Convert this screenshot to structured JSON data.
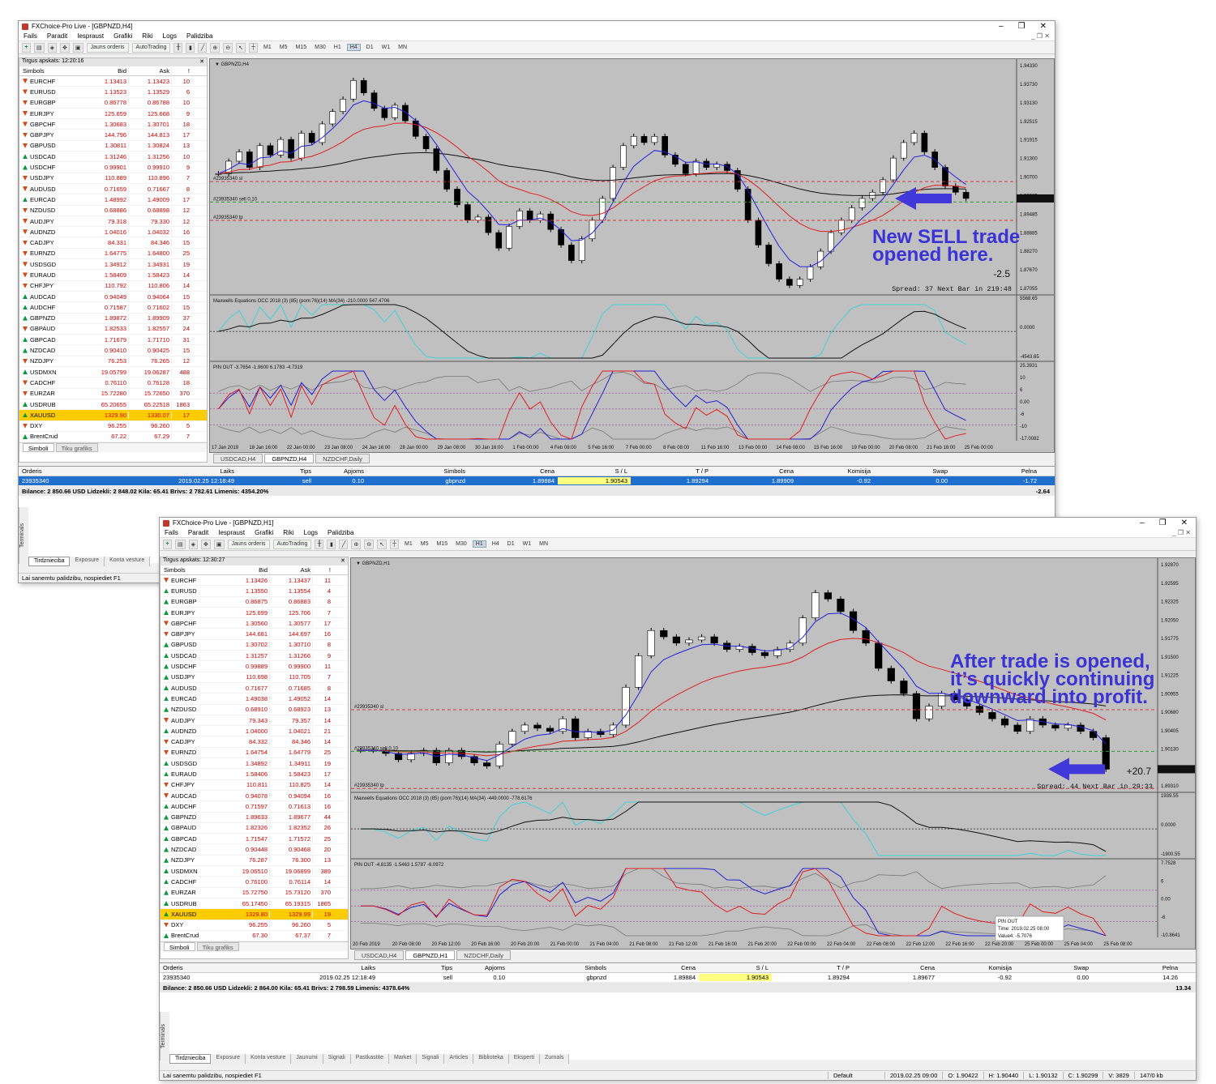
{
  "window1": {
    "title": "FXChoice-Pro Live - [GBPNZD,H4]",
    "menu": [
      "Fails",
      "Paradit",
      "Iespraust",
      "Grafiki",
      "Riki",
      "Logs",
      "Palidziba"
    ],
    "toolbar": {
      "new_order": "Jauns orderis",
      "autotrading": "AutoTrading"
    },
    "timeframes": [
      "M1",
      "M5",
      "M15",
      "M30",
      "H1",
      "H4",
      "D1",
      "W1",
      "MN"
    ],
    "active_tf": "H4",
    "market_title": "Tirgus apskats: 12:20:16",
    "market_tabs": [
      "Simboli",
      "Tiku grafiks"
    ],
    "chart_caption": "GBPNZD,H4",
    "indicator1": "Maxwells Equations OCC 2018 (3) (85) (pom:76)(14) MA(34) -210.0000 547.4706",
    "indicator2": "PIN OUT -3.7654 -1.9600 6.1783 -4.7319",
    "sl_label": "#23935340 sl",
    "sell_label": "#23935340 sell 0.10",
    "tp_label": "#23935340 tp",
    "price_ticks": [
      "1.94330",
      "1.93730",
      "1.93130",
      "1.92515",
      "1.91915",
      "1.91300",
      "1.90700",
      "1.90085",
      "1.89485",
      "1.88885",
      "1.88270",
      "1.87670",
      "1.87055"
    ],
    "current_price": "1.89872",
    "ind1_ticks": [
      "5568.65",
      "0.0000",
      "-4543.65"
    ],
    "ind2_ticks": [
      "25.3931",
      "10",
      "6",
      "0.00",
      "-6",
      "-10",
      "-17.0082"
    ],
    "time_ticks": [
      "17 Jan 2019",
      "18 Jan 16:00",
      "22 Jan 00:00",
      "23 Jan 08:00",
      "24 Jan 16:00",
      "28 Jan 00:00",
      "29 Jan 08:00",
      "30 Jan 16:00",
      "1 Feb 00:00",
      "4 Feb 08:00",
      "5 Feb 16:00",
      "7 Feb 00:00",
      "8 Feb 08:00",
      "11 Feb 16:00",
      "13 Feb 00:00",
      "14 Feb 08:00",
      "15 Feb 16:00",
      "19 Feb 00:00",
      "20 Feb 08:00",
      "21 Feb 16:00",
      "25 Feb 00:00"
    ],
    "spread_text": "Spread: 37  Next Bar in 219:48",
    "profit_text": "-2.5",
    "chart_tabs": [
      "USDCAD,H4",
      "GBPNZD,H4",
      "NZDCHF,Daily"
    ],
    "annotation": "New SELL trade opened here.",
    "annotation_line1": "New SELL trade",
    "annotation_line2": "opened here.",
    "terminal": {
      "headers": [
        "Orderis",
        "Laiks",
        "Tips",
        "Apjoms",
        "Simbols",
        "Cena",
        "S / L",
        "T / P",
        "Cena",
        "Komisija",
        "Swap",
        "Pelna"
      ],
      "row": [
        "23935340",
        "2019.02.25 12:18:49",
        "sell",
        "0.10",
        "gbpnzd",
        "1.89884",
        "1.90543",
        "1.89294",
        "1.89909",
        "-0.92",
        "0.00",
        "-1.72"
      ],
      "balance": "Bilance: 2 850.66 USD  Lidzekli: 2 848.02  Kila: 65.41  Brivs: 2 782.61  Limenis: 4354.20%",
      "balance_profit": "-2.64"
    },
    "bottom_tabs": [
      "Tirdznieciba",
      "Exposure",
      "Konta vesture"
    ],
    "terminal_vtab": "Terminals",
    "status": "Lai sanemtu palidzibu, nospiediet F1"
  },
  "window2": {
    "title": "FXChoice-Pro Live - [GBPNZD,H1]",
    "menu": [
      "Fails",
      "Paradit",
      "Iespraust",
      "Grafiki",
      "Riki",
      "Logs",
      "Palidziba"
    ],
    "toolbar": {
      "new_order": "Jauns orderis",
      "autotrading": "AutoTrading"
    },
    "timeframes": [
      "M1",
      "M5",
      "M15",
      "M30",
      "H1",
      "H4",
      "D1",
      "W1",
      "MN"
    ],
    "active_tf": "H1",
    "market_title": "Tirgus apskats: 12:30:27",
    "market_tabs": [
      "Simboli",
      "Tiku grafiks"
    ],
    "chart_caption": "GBPNZD,H1",
    "indicator1": "Maxwells Equations OCC 2018 (3) (85) (pom:76)(14) MA(34) -449.0000 -778.6176",
    "indicator2": "PIN OUT -4.8135 -1.5463 1.5787 -6.0972",
    "sl_label": "#23935340 sl",
    "sell_label": "#23935340 sell 0.10",
    "tp_label": "#23935340 tp",
    "price_ticks": [
      "1.92870",
      "1.92595",
      "1.92325",
      "1.92050",
      "1.91775",
      "1.91500",
      "1.91225",
      "1.90955",
      "1.90680",
      "1.90405",
      "1.90130",
      "1.89855",
      "1.89310"
    ],
    "current_price": "1.89633",
    "ind1_ticks": [
      "1939.55",
      "0.0000",
      "-1900.55"
    ],
    "ind2_ticks": [
      "7.7528",
      "6",
      "0.00",
      "-6",
      "-10.8641"
    ],
    "time_ticks": [
      "20 Feb 2019",
      "20 Feb 08:00",
      "20 Feb 12:00",
      "20 Feb 16:00",
      "20 Feb 20:00",
      "21 Feb 00:00",
      "21 Feb 04:00",
      "21 Feb 08:00",
      "21 Feb 12:00",
      "21 Feb 16:00",
      "21 Feb 20:00",
      "22 Feb 00:00",
      "22 Feb 04:00",
      "22 Feb 08:00",
      "22 Feb 12:00",
      "22 Feb 16:00",
      "22 Feb 20:00",
      "25 Feb 00:00",
      "25 Feb 04:00",
      "25 Feb 08:00"
    ],
    "spread_text": "Spread: 44  Next Bar in 29:33",
    "profit_text": "+20.7",
    "tooltip": [
      "PIN OUT",
      "Time: 2019.02.25 08:00",
      "Value4: -5.7076"
    ],
    "chart_tabs": [
      "USDCAD,H4",
      "GBPNZD,H1",
      "NZDCHF,Daily"
    ],
    "annotation_line1": "After trade is opened,",
    "annotation_line2": "it’s quickly continuing",
    "annotation_line3": "downward into profit.",
    "terminal": {
      "headers": [
        "Orderis",
        "Laiks",
        "Tips",
        "Apjoms",
        "Simbols",
        "Cena",
        "S / L",
        "T / P",
        "Cena",
        "Komisija",
        "Swap",
        "Pelna"
      ],
      "row": [
        "23935340",
        "2019.02.25 12:18:49",
        "sell",
        "0.10",
        "gbpnzd",
        "1.89884",
        "1.90543",
        "1.89294",
        "1.89677",
        "-0.92",
        "0.00",
        "14.26"
      ],
      "balance": "Bilance: 2 850.66 USD  Lidzekli: 2 864.00  Kila: 65.41  Brivs: 2 798.59  Limenis: 4378.64%",
      "balance_profit": "13.34"
    },
    "bottom_tabs": [
      "Tirdznieciba",
      "Exposure",
      "Konta vesture",
      "Jaunumi",
      "Signali",
      "Pastkastite",
      "Market",
      "Signali",
      "Articles",
      "Biblioteka",
      "Eksperti",
      "Zurnals"
    ],
    "terminal_vtab": "Terminals",
    "status": {
      "help": "Lai sanemtu palidzibu, nospiediet F1",
      "profile": "Default",
      "time": "2019.02.25 09:00",
      "open": "O: 1.90422",
      "high": "H: 1.90440",
      "low": "L: 1.90132",
      "close": "C: 1.90299",
      "volume": "V: 3829",
      "traffic": "147/0 kb"
    }
  },
  "market_headers": [
    "Simbols",
    "Bid",
    "Ask",
    "!"
  ],
  "market1": [
    [
      "EURCHF",
      "1.13413",
      "1.13423",
      "10",
      "dn"
    ],
    [
      "EURUSD",
      "1.13523",
      "1.13529",
      "6",
      "dn"
    ],
    [
      "EURGBP",
      "0.86778",
      "0.86788",
      "10",
      "dn"
    ],
    [
      "EURJPY",
      "125.659",
      "125.668",
      "9",
      "dn"
    ],
    [
      "GBPCHF",
      "1.30683",
      "1.30701",
      "18",
      "dn"
    ],
    [
      "GBPJPY",
      "144.796",
      "144.813",
      "17",
      "dn"
    ],
    [
      "GBPUSD",
      "1.30811",
      "1.30824",
      "13",
      "dn"
    ],
    [
      "USDCAD",
      "1.31246",
      "1.31256",
      "10",
      "up"
    ],
    [
      "USDCHF",
      "0.99901",
      "0.99910",
      "9",
      "up"
    ],
    [
      "USDJPY",
      "110.889",
      "110.896",
      "7",
      "dn"
    ],
    [
      "AUDUSD",
      "0.71659",
      "0.71667",
      "8",
      "dn"
    ],
    [
      "EURCAD",
      "1.48992",
      "1.49009",
      "17",
      "up"
    ],
    [
      "NZDUSD",
      "0.68886",
      "0.68898",
      "12",
      "dn"
    ],
    [
      "AUDJPY",
      "79.318",
      "79.330",
      "12",
      "dn"
    ],
    [
      "AUDNZD",
      "1.04016",
      "1.04032",
      "16",
      "dn"
    ],
    [
      "CADJPY",
      "84.331",
      "84.346",
      "15",
      "dn"
    ],
    [
      "EURNZD",
      "1.64775",
      "1.64800",
      "25",
      "dn"
    ],
    [
      "USDSGD",
      "1.34912",
      "1.34931",
      "19",
      "dn"
    ],
    [
      "EURAUD",
      "1.58409",
      "1.58423",
      "14",
      "dn"
    ],
    [
      "CHFJPY",
      "110.792",
      "110.806",
      "14",
      "dn"
    ],
    [
      "AUDCAD",
      "0.94049",
      "0.94064",
      "15",
      "up"
    ],
    [
      "AUDCHF",
      "0.71587",
      "0.71602",
      "15",
      "up"
    ],
    [
      "GBPNZD",
      "1.89872",
      "1.89909",
      "37",
      "up"
    ],
    [
      "GBPAUD",
      "1.82533",
      "1.82557",
      "24",
      "dn"
    ],
    [
      "GBPCAD",
      "1.71679",
      "1.71710",
      "31",
      "up"
    ],
    [
      "NZDCAD",
      "0.90410",
      "0.90425",
      "15",
      "up"
    ],
    [
      "NZDJPY",
      "76.253",
      "76.265",
      "12",
      "dn"
    ],
    [
      "USDMXN",
      "19.05799",
      "19.06287",
      "488",
      "up"
    ],
    [
      "CADCHF",
      "0.76110",
      "0.76128",
      "18",
      "dn"
    ],
    [
      "EURZAR",
      "15.72280",
      "15.72650",
      "370",
      "dn"
    ],
    [
      "USDRUB",
      "65.20655",
      "65.22518",
      "1863",
      "up"
    ],
    [
      "XAUUSD",
      "1329.90",
      "1330.07",
      "17",
      "up"
    ],
    [
      "DXY",
      "96.255",
      "96.260",
      "5",
      "dn"
    ],
    [
      "BrentCrud",
      "67.22",
      "67.29",
      "7",
      "up"
    ]
  ],
  "market2": [
    [
      "EURCHF",
      "1.13426",
      "1.13437",
      "11",
      "dn"
    ],
    [
      "EURUSD",
      "1.13550",
      "1.13554",
      "4",
      "up"
    ],
    [
      "EURGBP",
      "0.86875",
      "0.86883",
      "8",
      "up"
    ],
    [
      "EURJPY",
      "125.699",
      "125.706",
      "7",
      "up"
    ],
    [
      "GBPCHF",
      "1.30560",
      "1.30577",
      "17",
      "dn"
    ],
    [
      "GBPJPY",
      "144.681",
      "144.697",
      "16",
      "dn"
    ],
    [
      "GBPUSD",
      "1.30702",
      "1.30710",
      "8",
      "up"
    ],
    [
      "USDCAD",
      "1.31257",
      "1.31266",
      "9",
      "up"
    ],
    [
      "USDCHF",
      "0.99889",
      "0.99900",
      "11",
      "up"
    ],
    [
      "USDJPY",
      "110.698",
      "110.705",
      "7",
      "up"
    ],
    [
      "AUDUSD",
      "0.71677",
      "0.71685",
      "8",
      "up"
    ],
    [
      "EURCAD",
      "1.49038",
      "1.49052",
      "14",
      "up"
    ],
    [
      "NZDUSD",
      "0.68910",
      "0.68923",
      "13",
      "up"
    ],
    [
      "AUDJPY",
      "79.343",
      "79.357",
      "14",
      "dn"
    ],
    [
      "AUDNZD",
      "1.04000",
      "1.04021",
      "21",
      "up"
    ],
    [
      "CADJPY",
      "84.332",
      "84.346",
      "14",
      "dn"
    ],
    [
      "EURNZD",
      "1.64754",
      "1.64779",
      "25",
      "dn"
    ],
    [
      "USDSGD",
      "1.34892",
      "1.34911",
      "19",
      "up"
    ],
    [
      "EURAUD",
      "1.58406",
      "1.58423",
      "17",
      "up"
    ],
    [
      "CHFJPY",
      "110.811",
      "110.825",
      "14",
      "dn"
    ],
    [
      "AUDCAD",
      "0.94078",
      "0.94094",
      "16",
      "dn"
    ],
    [
      "AUDCHF",
      "0.71597",
      "0.71613",
      "16",
      "up"
    ],
    [
      "GBPNZD",
      "1.89633",
      "1.89677",
      "44",
      "up"
    ],
    [
      "GBPAUD",
      "1.82326",
      "1.82352",
      "26",
      "up"
    ],
    [
      "GBPCAD",
      "1.71547",
      "1.71572",
      "25",
      "up"
    ],
    [
      "NZDCAD",
      "0.90448",
      "0.90468",
      "20",
      "up"
    ],
    [
      "NZDJPY",
      "76.287",
      "76.300",
      "13",
      "up"
    ],
    [
      "USDMXN",
      "19.06510",
      "19.06899",
      "389",
      "up"
    ],
    [
      "CADCHF",
      "0.76100",
      "0.76114",
      "14",
      "up"
    ],
    [
      "EURZAR",
      "15.72750",
      "15.73120",
      "370",
      "up"
    ],
    [
      "USDRUB",
      "65.17450",
      "65.19315",
      "1865",
      "up"
    ],
    [
      "XAUUSD",
      "1329.80",
      "1329.99",
      "19",
      "up"
    ],
    [
      "DXY",
      "96.255",
      "96.260",
      "5",
      "dn"
    ],
    [
      "BrentCrud",
      "67.30",
      "67.37",
      "7",
      "up"
    ]
  ],
  "colors": {
    "arrow": "#4038d8",
    "annotation": "#3a33d6",
    "sell_line": "#2f9a2f",
    "level_line": "#d23a3a",
    "ma_red": "#e02020",
    "ma_blue": "#2020e0",
    "ma_black": "#111111",
    "ind_cyan": "#40d0d8",
    "highlight": "#ffcc00",
    "selected_row": "#1f6fcf"
  },
  "chart_data": [
    {
      "type": "candlestick",
      "title": "GBPNZD,H4",
      "ylim": [
        1.8705,
        1.9433
      ],
      "close_series": [
        1.908,
        1.912,
        1.915,
        1.91,
        1.917,
        1.914,
        1.919,
        1.913,
        1.921,
        1.918,
        1.924,
        1.928,
        1.932,
        1.938,
        1.934,
        1.929,
        1.926,
        1.93,
        1.925,
        1.92,
        1.916,
        1.909,
        1.903,
        1.898,
        1.893,
        1.894,
        1.889,
        1.884,
        1.891,
        1.896,
        1.893,
        1.895,
        1.89,
        1.885,
        1.88,
        1.887,
        1.893,
        1.9,
        1.91,
        1.917,
        1.92,
        1.918,
        1.92,
        1.914,
        1.911,
        1.908,
        1.912,
        1.91,
        1.911,
        1.909,
        1.903,
        1.893,
        1.885,
        1.879,
        1.874,
        1.872,
        1.874,
        1.878,
        1.883,
        1.889,
        1.893,
        1.897,
        1.9,
        1.902,
        1.906,
        1.913,
        1.918,
        1.921,
        1.915,
        1.91,
        1.904,
        1.902,
        1.9
      ],
      "sell_price": 1.89884,
      "sl": 1.90543,
      "tp": 1.89294
    },
    {
      "type": "candlestick",
      "title": "GBPNZD,H1",
      "ylim": [
        1.8931,
        1.9287
      ],
      "close_series": [
        1.899,
        1.899,
        1.8985,
        1.8975,
        1.8985,
        1.899,
        1.897,
        1.899,
        1.898,
        1.897,
        1.8965,
        1.9,
        1.902,
        1.903,
        1.9025,
        1.902,
        1.904,
        1.901,
        1.902,
        1.9015,
        1.903,
        1.909,
        1.914,
        1.918,
        1.917,
        1.916,
        1.9165,
        1.917,
        1.916,
        1.915,
        1.9155,
        1.9145,
        1.914,
        1.915,
        1.916,
        1.92,
        1.924,
        1.923,
        1.921,
        1.918,
        1.916,
        1.912,
        1.91,
        1.908,
        1.904,
        1.906,
        1.908,
        1.907,
        1.906,
        1.905,
        1.904,
        1.903,
        1.902,
        1.904,
        1.903,
        1.9025,
        1.903,
        1.902,
        1.901,
        1.896
      ],
      "sell_price": 1.89884,
      "sl": 1.90543,
      "tp": 1.89294
    }
  ]
}
